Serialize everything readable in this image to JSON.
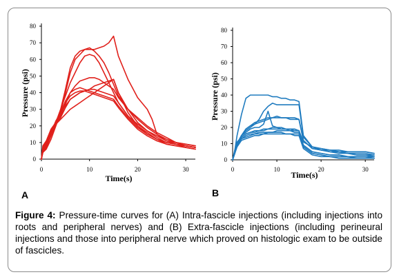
{
  "caption": {
    "label": "Figure 4:",
    "text": "Pressure-time curves for (A) Intra-fascicle injections (including injections into roots and peripheral nerves) and (B) Extra-fascicle injections (including perineural injections and those into peripheral nerve which proved on histologic exam to be outside of fascicles."
  },
  "colors": {
    "panel_a": "#e0201b",
    "panel_b": "#1f7bbf",
    "axis": "#000000"
  },
  "chart_data": [
    {
      "type": "line",
      "panel_label": "A",
      "xlabel": "Time(s)",
      "ylabel": "Pressure (psi)",
      "xlim": [
        0,
        32
      ],
      "ylim": [
        0,
        80
      ],
      "xticks": [
        0,
        10,
        20,
        30
      ],
      "yticks": [
        0,
        10,
        20,
        30,
        40,
        50,
        60,
        70,
        80
      ],
      "grid": false,
      "legend": "none",
      "series": [
        {
          "x": [
            0,
            0.3,
            1,
            2,
            3,
            4,
            5,
            6,
            7,
            8,
            9,
            10,
            11,
            12,
            13,
            14,
            15,
            16,
            18,
            20,
            22,
            23,
            24,
            26,
            28,
            30,
            32
          ],
          "y": [
            0,
            5,
            7,
            15,
            22,
            30,
            42,
            55,
            62,
            65,
            66,
            66,
            66,
            67,
            68,
            70,
            74,
            62,
            48,
            37,
            30,
            24,
            15,
            11,
            10,
            9,
            8
          ]
        },
        {
          "x": [
            0,
            0.3,
            1,
            2,
            3,
            4,
            5,
            6,
            7,
            8,
            9,
            10,
            11,
            12,
            13,
            14,
            15,
            16,
            18,
            20,
            22,
            24,
            26,
            28,
            30,
            32
          ],
          "y": [
            0,
            4,
            6,
            12,
            20,
            28,
            40,
            52,
            60,
            63,
            66,
            67,
            65,
            62,
            58,
            52,
            45,
            38,
            30,
            24,
            19,
            15,
            12,
            10,
            9,
            8
          ]
        },
        {
          "x": [
            0,
            0.3,
            1,
            2,
            3,
            4,
            5,
            6,
            7,
            8,
            9,
            10,
            11,
            12,
            13,
            14,
            15,
            16,
            18,
            20,
            22,
            24,
            26,
            28,
            30,
            32
          ],
          "y": [
            0,
            5,
            8,
            14,
            22,
            30,
            38,
            46,
            52,
            58,
            62,
            63,
            62,
            58,
            52,
            46,
            40,
            34,
            26,
            21,
            17,
            14,
            11,
            9,
            8,
            7
          ]
        },
        {
          "x": [
            0,
            0.3,
            1,
            2,
            3,
            4,
            5,
            6,
            7,
            8,
            9,
            10,
            11,
            12,
            13,
            14,
            15,
            16,
            18,
            20,
            22,
            24,
            26,
            28,
            30,
            32
          ],
          "y": [
            0,
            6,
            8,
            15,
            22,
            28,
            35,
            40,
            44,
            47,
            48,
            49,
            49,
            48,
            46,
            44,
            42,
            37,
            30,
            25,
            20,
            16,
            13,
            10,
            8,
            7
          ]
        },
        {
          "x": [
            0,
            0.3,
            1,
            2,
            3,
            4,
            5,
            6,
            7,
            8,
            9,
            10,
            11,
            12,
            13,
            14,
            15,
            16,
            18,
            20,
            22,
            24,
            26,
            28,
            30,
            32
          ],
          "y": [
            0,
            6,
            9,
            16,
            23,
            28,
            32,
            36,
            38,
            40,
            41,
            42,
            42,
            41,
            40,
            39,
            38,
            34,
            26,
            20,
            16,
            12,
            10,
            9,
            8,
            7
          ]
        },
        {
          "x": [
            0,
            0.3,
            1,
            2,
            3,
            4,
            5,
            6,
            7,
            8,
            9,
            10,
            11,
            12,
            13,
            14,
            15,
            16,
            18,
            20,
            22,
            24,
            26,
            28,
            30,
            32
          ],
          "y": [
            0,
            7,
            10,
            18,
            22,
            26,
            33,
            40,
            42,
            43,
            42,
            41,
            40,
            39,
            38,
            37,
            36,
            32,
            25,
            19,
            15,
            12,
            10,
            9,
            8,
            7
          ]
        },
        {
          "x": [
            0,
            0.3,
            1,
            2,
            3,
            4,
            5,
            6,
            7,
            8,
            9,
            10,
            11,
            12,
            13,
            14,
            15,
            16,
            18,
            20,
            22,
            24,
            26,
            28,
            30,
            32
          ],
          "y": [
            0,
            5,
            9,
            17,
            21,
            24,
            27,
            30,
            32,
            34,
            36,
            38,
            40,
            42,
            44,
            46,
            48,
            40,
            30,
            22,
            17,
            13,
            10,
            9,
            7,
            6
          ]
        },
        {
          "x": [
            0,
            0.3,
            1,
            2,
            3,
            4,
            5,
            6,
            7,
            8,
            9,
            10,
            11,
            12,
            13,
            14,
            15,
            16,
            18,
            20,
            22,
            24,
            26,
            28,
            30,
            32
          ],
          "y": [
            0,
            8,
            11,
            18,
            22,
            27,
            34,
            38,
            40,
            41,
            41,
            40,
            39,
            38,
            37,
            36,
            35,
            31,
            24,
            18,
            14,
            11,
            9,
            8,
            7,
            6
          ]
        },
        {
          "x": [
            0,
            0.3,
            1,
            2,
            3,
            4,
            5,
            6,
            7,
            8,
            9,
            10,
            11,
            12,
            13,
            14,
            15,
            16,
            18,
            20,
            22,
            24,
            26,
            28,
            30,
            32
          ],
          "y": [
            0,
            4,
            7,
            14,
            21,
            25,
            31,
            36,
            38,
            40,
            41,
            42,
            44,
            45,
            46,
            47,
            48,
            40,
            28,
            20,
            15,
            12,
            9,
            8,
            7,
            6
          ]
        }
      ]
    },
    {
      "type": "line",
      "panel_label": "B",
      "xlabel": "Time(s)",
      "ylabel": "Pressure (psi)",
      "xlim": [
        0,
        32
      ],
      "ylim": [
        0,
        80
      ],
      "xticks": [
        0,
        10,
        20,
        30
      ],
      "yticks": [
        0,
        10,
        20,
        30,
        40,
        50,
        60,
        70,
        80
      ],
      "grid": false,
      "legend": "none",
      "series": [
        {
          "x": [
            0,
            0.5,
            1,
            2,
            3,
            4,
            5,
            6,
            7,
            8,
            9,
            10,
            11,
            12,
            13,
            14,
            15,
            16,
            18,
            20,
            22,
            24,
            26,
            28,
            30,
            32
          ],
          "y": [
            0,
            6,
            15,
            28,
            38,
            40,
            40,
            40,
            40,
            40,
            39,
            39,
            38,
            38,
            37,
            37,
            36,
            15,
            8,
            7,
            6,
            5,
            4,
            3,
            3,
            2
          ]
        },
        {
          "x": [
            0,
            0.5,
            1,
            2,
            3,
            4,
            5,
            6,
            7,
            8,
            9,
            10,
            11,
            12,
            13,
            14,
            15,
            16,
            18,
            20,
            22,
            24,
            26,
            28,
            30,
            32
          ],
          "y": [
            0,
            5,
            10,
            15,
            18,
            20,
            22,
            25,
            30,
            33,
            35,
            34,
            34,
            34,
            34,
            34,
            34,
            14,
            8,
            6,
            5,
            5,
            4,
            4,
            4,
            3
          ]
        },
        {
          "x": [
            0,
            0.5,
            1,
            2,
            3,
            4,
            5,
            6,
            7,
            8,
            9,
            10,
            11,
            12,
            13,
            14,
            15,
            16,
            18,
            20,
            22,
            24,
            26,
            28,
            30,
            32
          ],
          "y": [
            0,
            6,
            10,
            15,
            19,
            21,
            22,
            23,
            24,
            25,
            26,
            26,
            26,
            26,
            26,
            26,
            25,
            12,
            7,
            6,
            5,
            4,
            4,
            3,
            3,
            3
          ]
        },
        {
          "x": [
            0,
            0.5,
            1,
            2,
            3,
            4,
            5,
            6,
            7,
            8,
            9,
            10,
            11,
            12,
            13,
            14,
            15,
            16,
            18,
            20,
            22,
            24,
            26,
            28,
            30,
            32
          ],
          "y": [
            0,
            5,
            9,
            15,
            19,
            21,
            23,
            24,
            25,
            26,
            26,
            27,
            26,
            26,
            25,
            25,
            25,
            12,
            7,
            6,
            6,
            5,
            5,
            5,
            5,
            4
          ]
        },
        {
          "x": [
            0,
            0.5,
            1,
            2,
            3,
            4,
            5,
            6,
            7,
            8,
            9,
            10,
            11,
            12,
            13,
            14,
            15,
            16,
            18,
            20,
            22,
            24,
            26,
            28,
            30,
            32
          ],
          "y": [
            0,
            6,
            10,
            15,
            17,
            19,
            20,
            20,
            22,
            30,
            21,
            20,
            20,
            19,
            19,
            18,
            18,
            11,
            8,
            7,
            6,
            6,
            5,
            5,
            5,
            4
          ]
        },
        {
          "x": [
            0,
            0.5,
            1,
            2,
            3,
            4,
            5,
            6,
            7,
            8,
            9,
            10,
            11,
            12,
            13,
            14,
            15,
            16,
            18,
            20,
            22,
            24,
            26,
            28,
            30,
            32
          ],
          "y": [
            0,
            5,
            10,
            14,
            16,
            17,
            17,
            18,
            18,
            19,
            20,
            20,
            19,
            19,
            18,
            18,
            18,
            9,
            5,
            4,
            3,
            3,
            2,
            2,
            2,
            1
          ]
        },
        {
          "x": [
            0,
            0.5,
            1,
            2,
            3,
            4,
            5,
            6,
            7,
            8,
            9,
            10,
            11,
            12,
            13,
            14,
            15,
            16,
            18,
            20,
            22,
            24,
            26,
            28,
            30,
            32
          ],
          "y": [
            0,
            4,
            9,
            13,
            15,
            16,
            16,
            17,
            17,
            17,
            17,
            18,
            18,
            18,
            18,
            17,
            17,
            8,
            4,
            3,
            2,
            2,
            2,
            1,
            1,
            1
          ]
        },
        {
          "x": [
            0,
            0.5,
            1,
            2,
            3,
            4,
            5,
            6,
            7,
            8,
            9,
            10,
            11,
            12,
            13,
            14,
            15,
            16,
            18,
            20,
            22,
            24,
            26,
            28,
            30,
            32
          ],
          "y": [
            0,
            5,
            9,
            13,
            14,
            15,
            16,
            16,
            16,
            17,
            17,
            17,
            17,
            16,
            16,
            16,
            16,
            8,
            4,
            3,
            2,
            2,
            2,
            1,
            1,
            1
          ]
        },
        {
          "x": [
            0,
            0.5,
            1,
            2,
            3,
            4,
            5,
            6,
            7,
            8,
            9,
            10,
            11,
            12,
            13,
            14,
            15,
            16,
            18,
            20,
            22,
            24,
            26,
            28,
            30,
            32
          ],
          "y": [
            0,
            4,
            8,
            12,
            13,
            14,
            15,
            15,
            16,
            16,
            16,
            16,
            16,
            16,
            16,
            15,
            15,
            7,
            3,
            2,
            2,
            1,
            1,
            1,
            1,
            1
          ]
        },
        {
          "x": [
            0,
            0.5,
            1,
            2,
            3,
            4,
            5,
            6,
            7,
            8,
            9,
            10,
            11,
            12,
            13,
            14,
            15,
            16,
            18,
            20,
            22,
            24,
            26,
            28,
            30,
            32
          ],
          "y": [
            0,
            6,
            11,
            14,
            16,
            17,
            18,
            18,
            19,
            19,
            19,
            19,
            19,
            19,
            19,
            19,
            18,
            9,
            5,
            4,
            3,
            3,
            2,
            2,
            2,
            2
          ]
        }
      ]
    }
  ]
}
